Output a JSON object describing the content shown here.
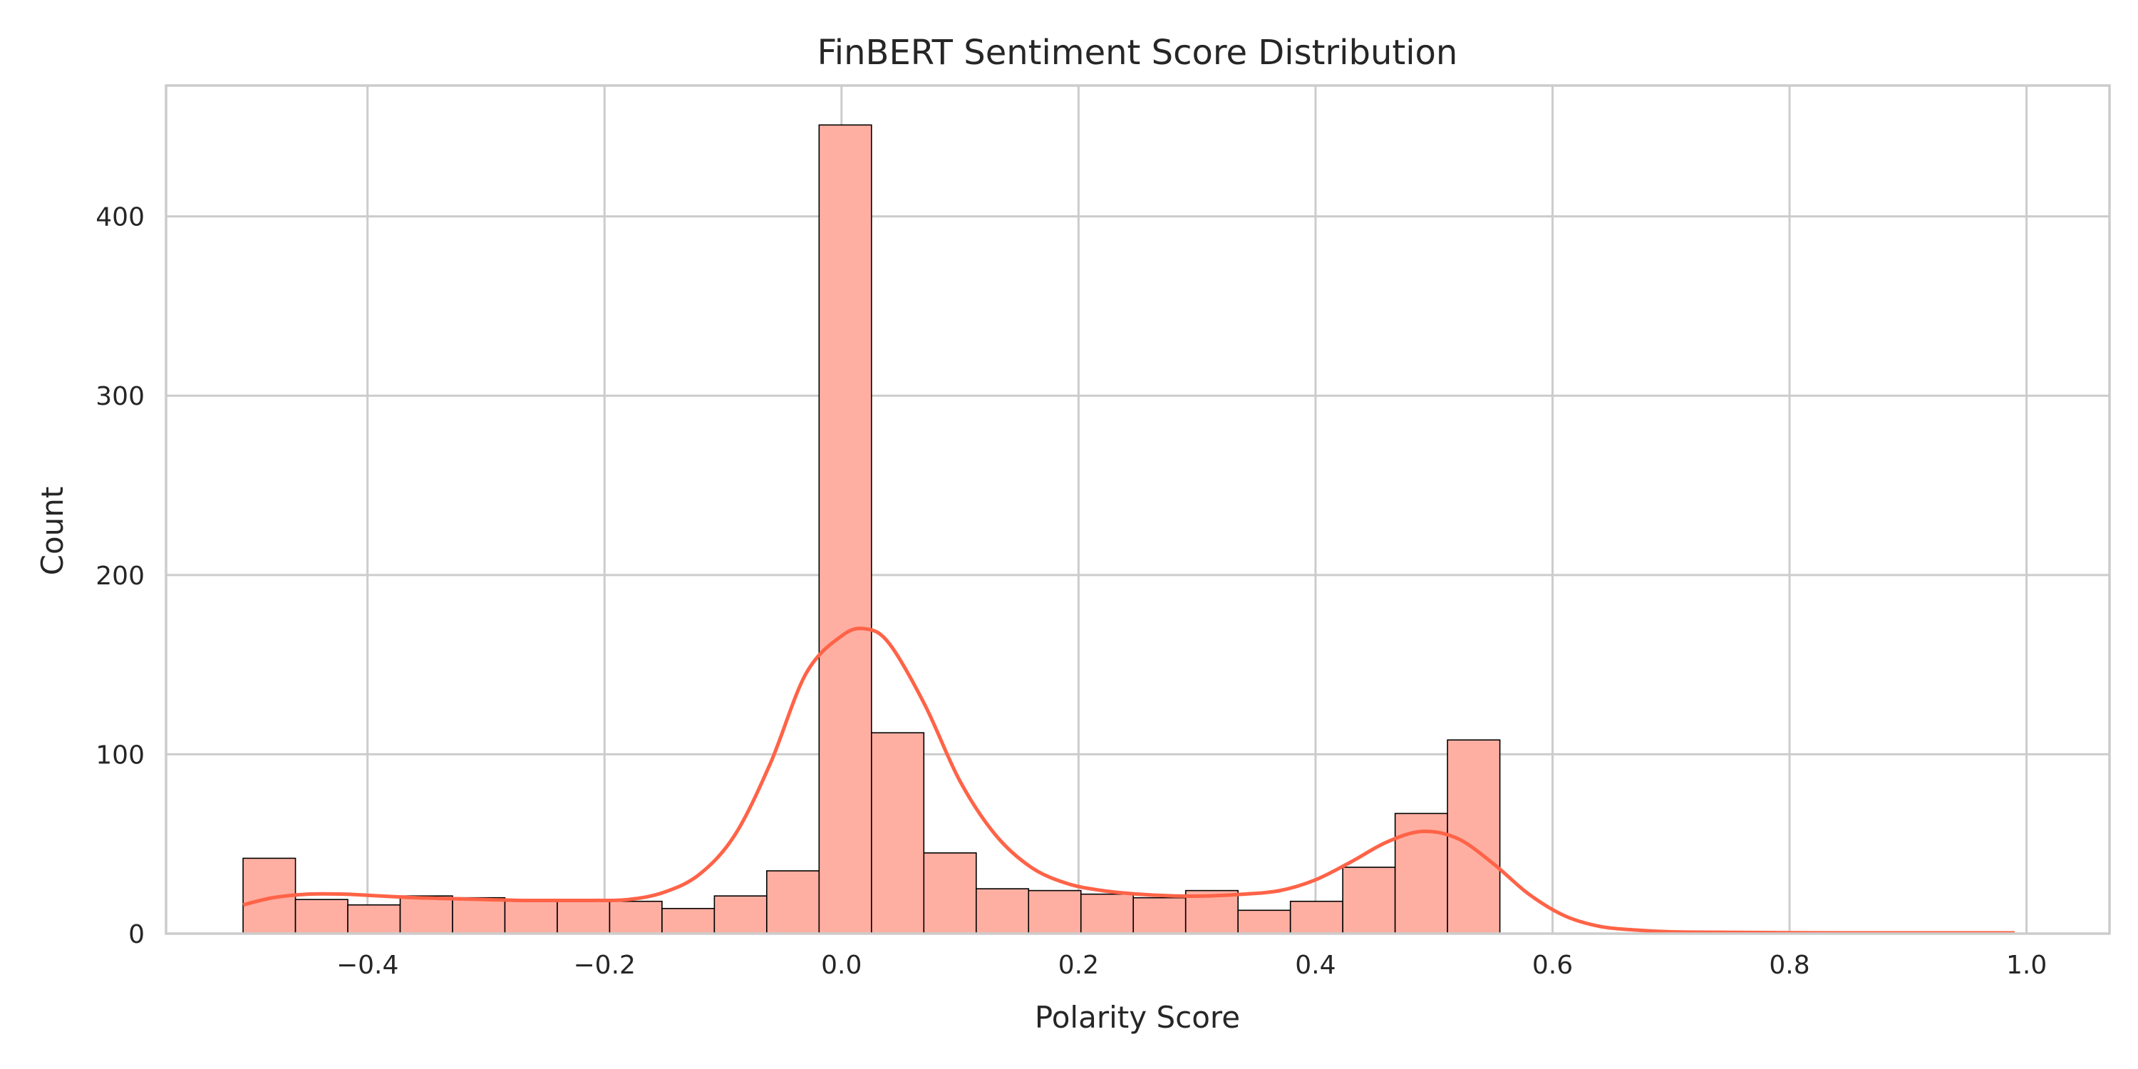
{
  "chart_data": {
    "type": "bar",
    "subtype": "histogram-with-kde",
    "title": "FinBERT Sentiment Score Distribution",
    "xlabel": "Polarity Score",
    "ylabel": "Count",
    "xlim": [
      -0.57,
      1.07
    ],
    "ylim": [
      0,
      473
    ],
    "xticks": [
      -0.4,
      -0.2,
      0.0,
      0.2,
      0.4,
      0.6,
      0.8,
      1.0
    ],
    "xtick_labels": [
      "−0.4",
      "−0.2",
      "0.0",
      "0.2",
      "0.4",
      "0.6",
      "0.8",
      "1.0"
    ],
    "yticks": [
      0,
      100,
      200,
      300,
      400
    ],
    "ytick_labels": [
      "0",
      "100",
      "200",
      "300",
      "400"
    ],
    "grid": true,
    "bar_color": "#ffafa2",
    "bar_edge_color": "#000000",
    "kde_color": "#ff6347",
    "bins": {
      "start": -0.505,
      "width": 0.04419,
      "counts": [
        42,
        19,
        16,
        21,
        20,
        18,
        18,
        18,
        14,
        21,
        35,
        451,
        112,
        45,
        25,
        24,
        22,
        20,
        24,
        13,
        18,
        37,
        67,
        108
      ]
    },
    "kde": {
      "x": [
        -0.505,
        -0.48,
        -0.45,
        -0.42,
        -0.39,
        -0.36,
        -0.33,
        -0.3,
        -0.27,
        -0.24,
        -0.21,
        -0.18,
        -0.15,
        -0.12,
        -0.09,
        -0.06,
        -0.03,
        0.0,
        0.02,
        0.04,
        0.07,
        0.1,
        0.13,
        0.16,
        0.19,
        0.22,
        0.25,
        0.28,
        0.31,
        0.34,
        0.37,
        0.4,
        0.43,
        0.46,
        0.49,
        0.52,
        0.55,
        0.58,
        0.61,
        0.64,
        0.67,
        0.7,
        0.75,
        0.8,
        0.85,
        0.9,
        0.95,
        0.99
      ],
      "y": [
        16,
        20,
        22,
        22,
        21,
        20,
        19.5,
        19,
        18.5,
        18.5,
        18.5,
        19,
        23,
        33,
        55,
        95,
        145,
        166,
        170,
        162,
        128,
        85,
        55,
        37,
        28,
        24,
        22,
        21,
        21,
        22,
        24,
        30,
        40,
        51,
        57,
        53,
        39,
        22,
        10,
        4,
        2,
        1,
        0.7,
        0.5,
        0.4,
        0.4,
        0.4,
        0.4
      ]
    }
  }
}
